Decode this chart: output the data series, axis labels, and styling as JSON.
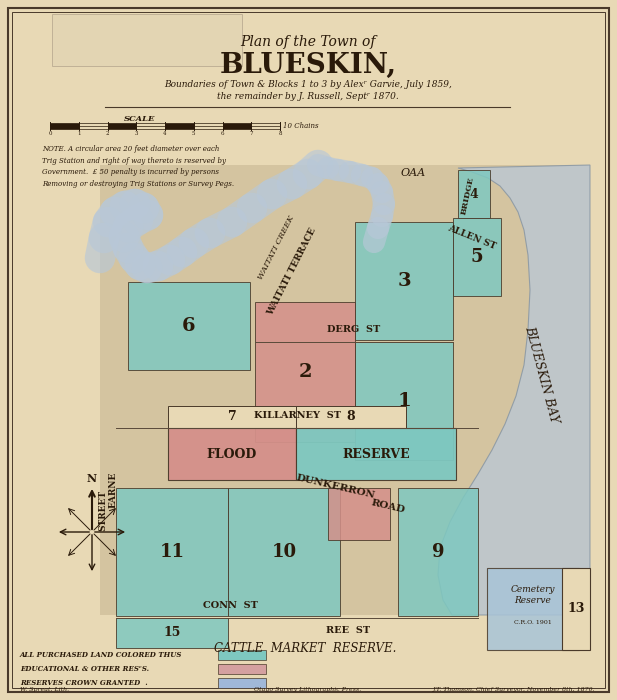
{
  "bg_color": "#e8d9b5",
  "border_color": "#4a3a2a",
  "title_line1": "Plan of the Town of",
  "title_line2": "BLUESKIN,",
  "subtitle1": "Boundaries of Town & Blocks 1 to 3 by Alexʳ Garvie, July 1859,",
  "subtitle2": "the remainder by J. Russell, Septʳ 1870.",
  "scale_label": "SCALE",
  "note_text": "NOTE. A circular area 20 feet diameter over each\nTrig Station and right of way thereto is reserved by\nGovernment.  £ 50 penalty is incurred by persons\nRemoving or destroying Trig Stations or Survey Pegs.",
  "legend_items": [
    {
      "label": "ALL PURCHASED LAND COLORED THUS",
      "color": "#7ec8c0"
    },
    {
      "label": "EDUCATIONAL & OTHER RESᶜS.",
      "color": "#d4a0a0"
    },
    {
      "label": "RESERVES CROWN GRANTED  .",
      "color": "#a0b8d8"
    }
  ],
  "footer_left": "W. Spreat, Lith.",
  "footer_center": "Otago Survey Lithographic Press.",
  "footer_right": "J.T. Thomson, Chief Surveyor, November 8th, 1870.",
  "map_bg": "#d4c4a0",
  "water_color": "#b8c8d8",
  "teal_color": "#7ec8c0",
  "pink_color": "#d4908a",
  "blue_light": "#a8c4d8",
  "bay_label": "BLUESKIN BAY",
  "creek_label": "WAITATI CREEK",
  "terrace_label": "WAITATI TERRACE",
  "cattle_label": "CATTLE  MARKET  RESERVE.",
  "flood_label": "FLOOD",
  "reserve_label": "RESERVE",
  "dunkerron_label": "DUNKERRON",
  "road_label": "ROAD",
  "killarney_label": "KILLARNEY  ST",
  "derg_label": "DERG  ST",
  "conn_label": "CONN  ST",
  "ree_label": "REE  ST",
  "allen_label": "ALLEN ST",
  "bridge_label": "BRIDGE",
  "oaa_label": "OAA",
  "cemetery_label": "Cemetery\nReserve",
  "cro_label": "C.R.O. 1901",
  "street_label": "STREET",
  "earne_label": "EARNE"
}
